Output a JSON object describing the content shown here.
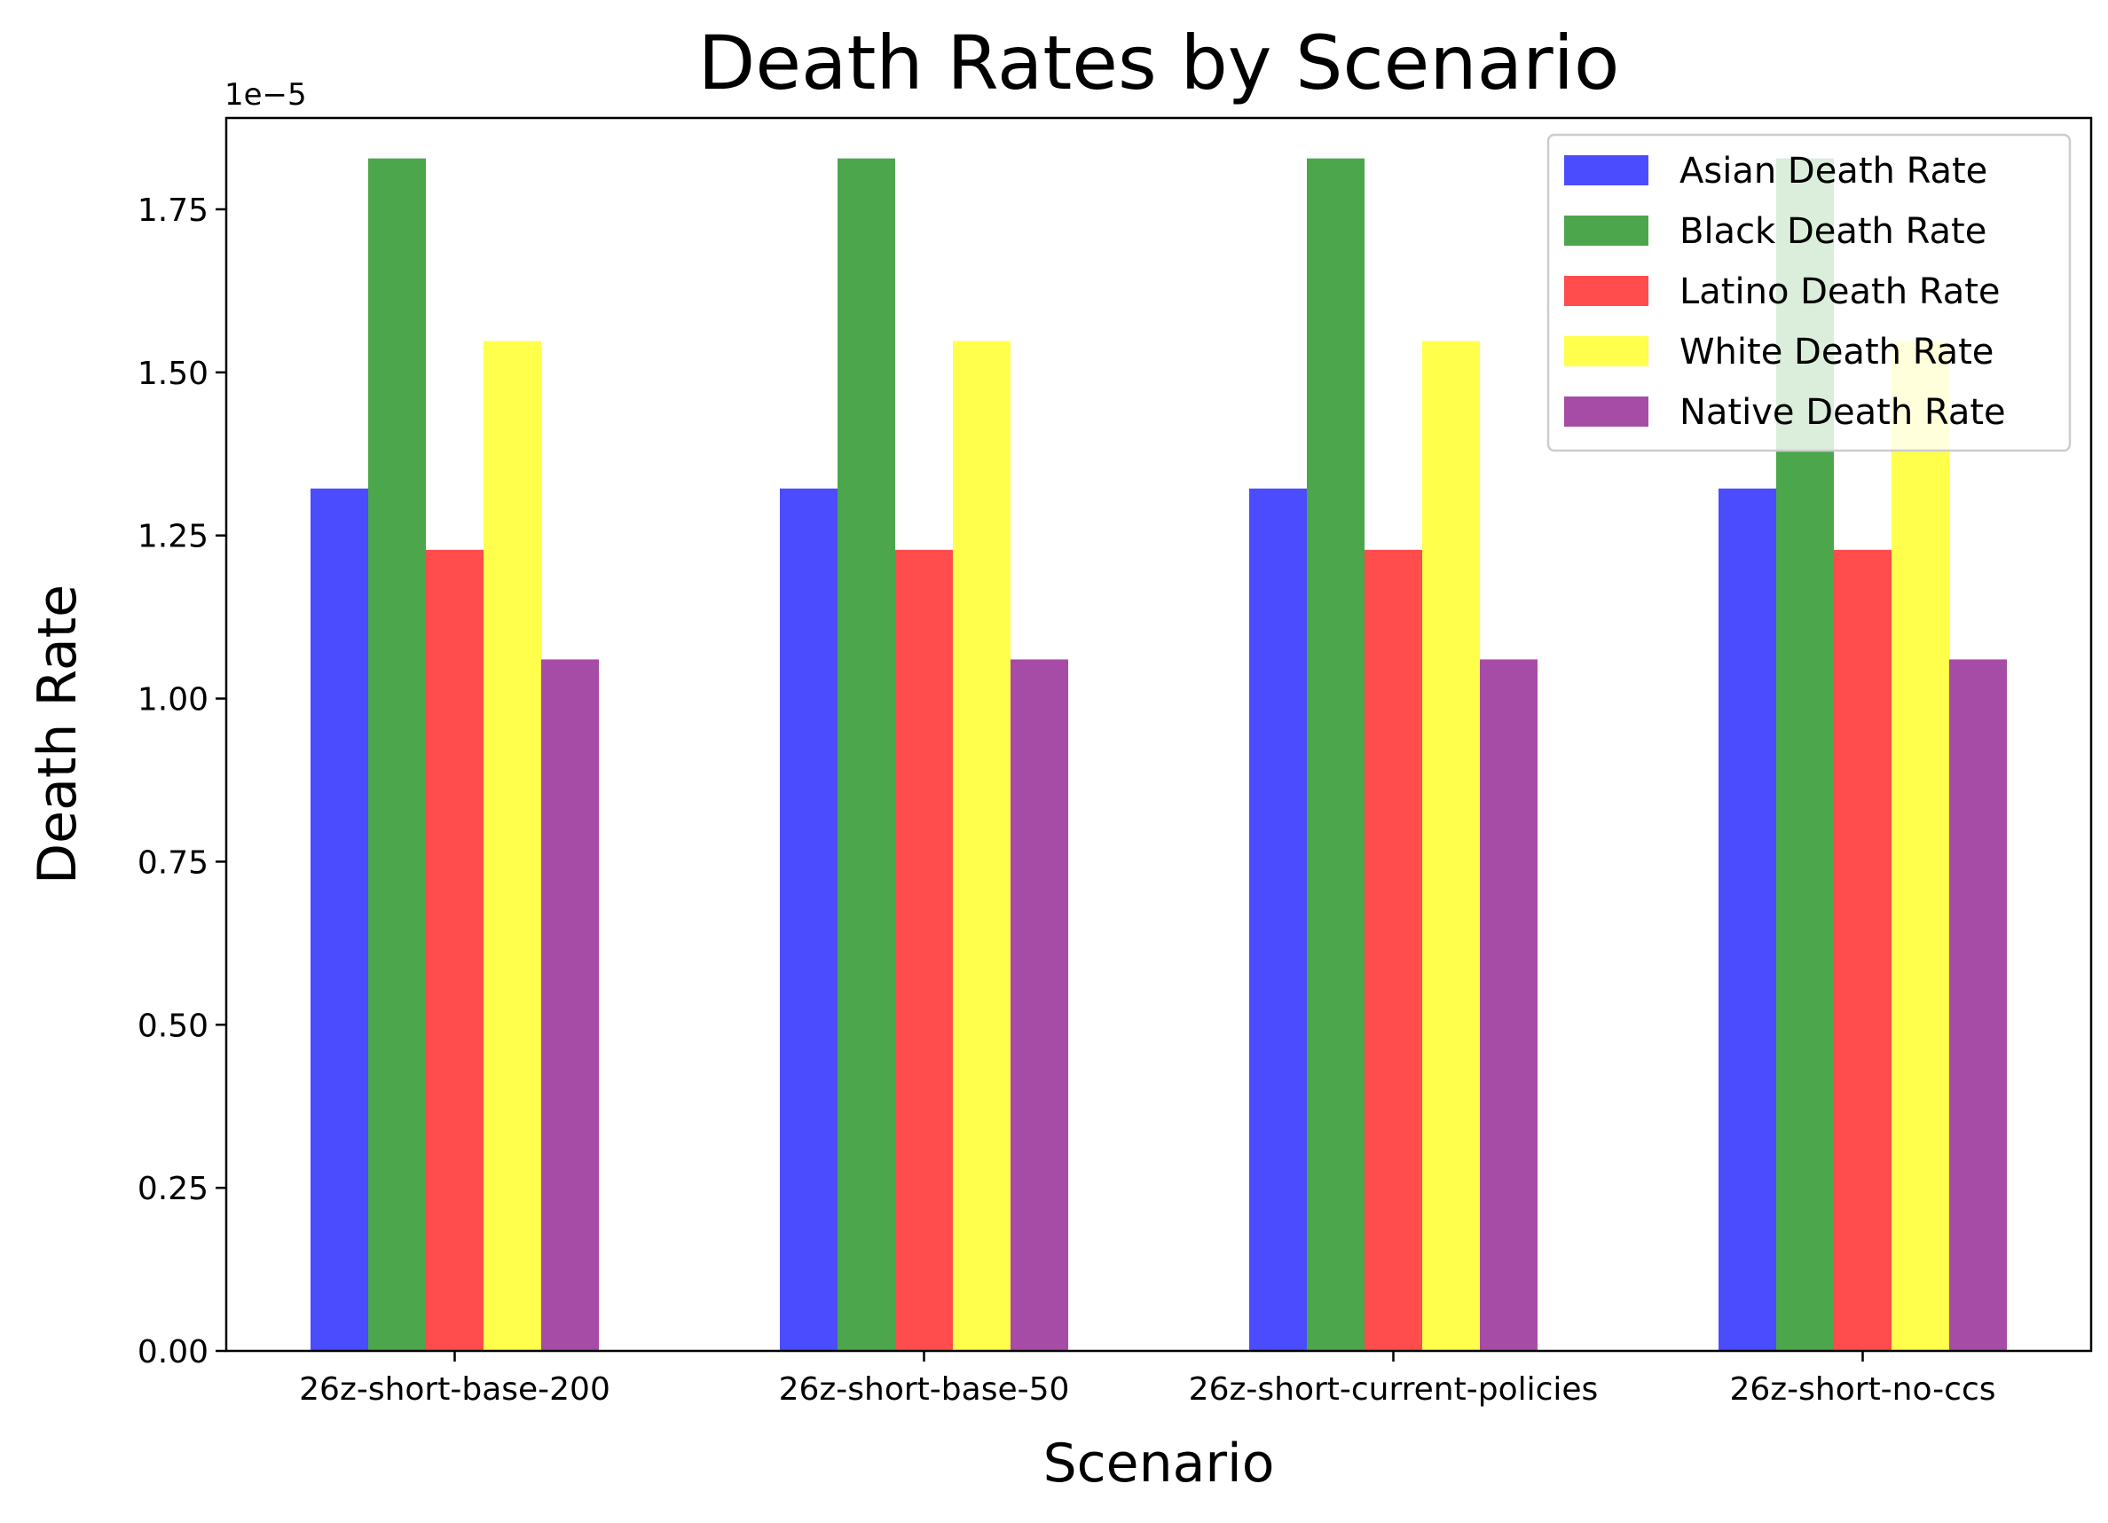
{
  "chart_data": {
    "type": "bar",
    "title": "Death Rates by Scenario",
    "xlabel": "Scenario",
    "ylabel": "Death Rate",
    "y_offset_label": "1e−5",
    "y_scale_exponent": -5,
    "categories": [
      "26z-short-base-200",
      "26z-short-base-50",
      "26z-short-current-policies",
      "26z-short-no-ccs"
    ],
    "series": [
      {
        "name": "Asian Death Rate",
        "color": "#0000ff",
        "values": [
          1.322,
          1.322,
          1.322,
          1.322
        ]
      },
      {
        "name": "Black Death Rate",
        "color": "#008000",
        "values": [
          1.828,
          1.828,
          1.828,
          1.828
        ]
      },
      {
        "name": "Latino Death Rate",
        "color": "#ff0000",
        "values": [
          1.228,
          1.228,
          1.228,
          1.228
        ]
      },
      {
        "name": "White Death Rate",
        "color": "#ffff00",
        "values": [
          1.548,
          1.548,
          1.548,
          1.548
        ]
      },
      {
        "name": "Native Death Rate",
        "color": "#800080",
        "values": [
          1.06,
          1.06,
          1.06,
          1.06
        ]
      }
    ],
    "bar_alpha": 0.7,
    "ylim": [
      0,
      1.89
    ],
    "yticks": [
      "0.00",
      "0.25",
      "0.50",
      "0.75",
      "1.00",
      "1.25",
      "1.50",
      "1.75"
    ],
    "legend_position": "top-right",
    "grid": false
  }
}
